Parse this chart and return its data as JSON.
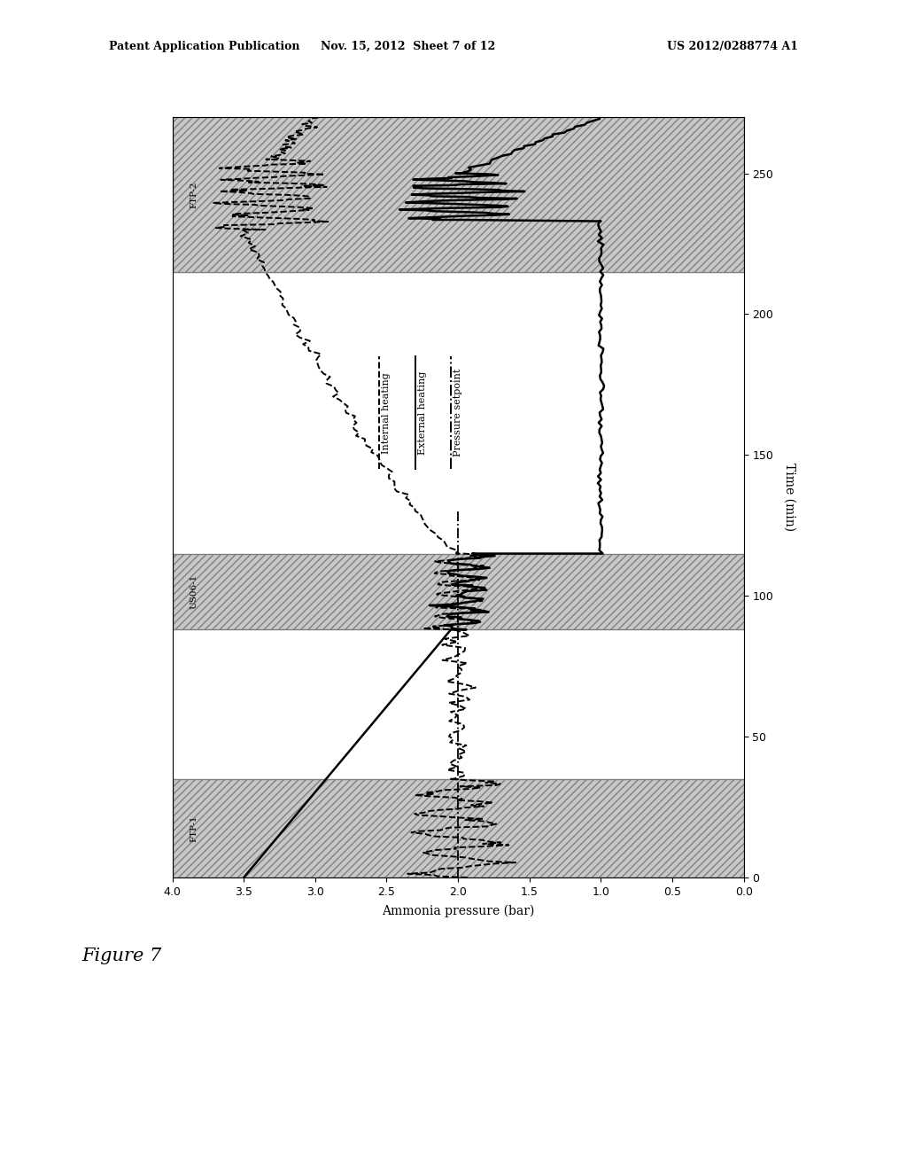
{
  "header_left": "Patent Application Publication",
  "header_center": "Nov. 15, 2012  Sheet 7 of 12",
  "header_right": "US 2012/0288774 A1",
  "figure_label": "Figure 7",
  "pressure_label": "Ammonia pressure (bar)",
  "time_label": "Time (min)",
  "xlim": [
    4,
    0
  ],
  "ylim": [
    0,
    270
  ],
  "xticks": [
    4,
    3.5,
    3,
    2.5,
    2,
    1.5,
    1,
    0.5,
    0
  ],
  "yticks": [
    0,
    50,
    100,
    150,
    200,
    250
  ],
  "shaded_regions": [
    {
      "ymin": 0,
      "ymax": 35,
      "label": "FTP-1"
    },
    {
      "ymin": 88,
      "ymax": 115,
      "label": "US06-1"
    },
    {
      "ymin": 215,
      "ymax": 270,
      "label": "FTP-2"
    }
  ],
  "shade_hatch": "////",
  "shade_color": "#c8c8c8",
  "legend_entries": [
    "Internal heating",
    "External heating",
    "Pressure setpoint"
  ],
  "legend_rotation": 90,
  "pressure_setpoint": 2.0
}
